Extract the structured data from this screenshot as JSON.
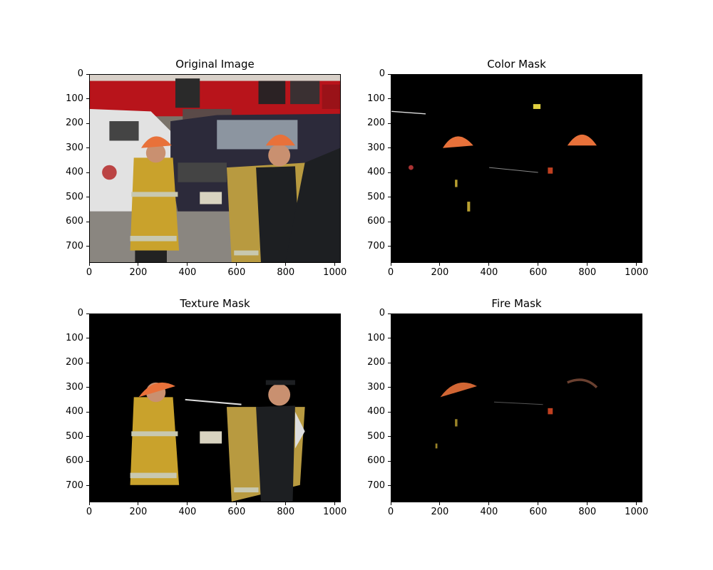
{
  "colors": {
    "truck_red": "#b8141b",
    "helmet_orange": "#e8713a",
    "jacket_yellow": "#c9a22c",
    "reflective": "#c8c8b0",
    "suv_navy": "#2c2a3a",
    "car_white": "#e2e2e2",
    "road": "#8a8680",
    "dark_uniform": "#1d1f22",
    "mask_black": "#000000"
  },
  "chart_data": [
    {
      "type": "image",
      "title": "Original Image",
      "xlim": [
        0,
        1024
      ],
      "ylim": [
        768,
        0
      ],
      "xticks": [
        0,
        200,
        400,
        600,
        800,
        1000
      ],
      "yticks": [
        0,
        100,
        200,
        300,
        400,
        500,
        600,
        700
      ],
      "content": "original"
    },
    {
      "type": "image",
      "title": "Color Mask",
      "xlim": [
        0,
        1024
      ],
      "ylim": [
        768,
        0
      ],
      "xticks": [
        0,
        200,
        400,
        600,
        800,
        1000
      ],
      "yticks": [
        0,
        100,
        200,
        300,
        400,
        500,
        600,
        700
      ],
      "content": "color"
    },
    {
      "type": "image",
      "title": "Texture Mask",
      "xlim": [
        0,
        1024
      ],
      "ylim": [
        768,
        0
      ],
      "xticks": [
        0,
        200,
        400,
        600,
        800,
        1000
      ],
      "yticks": [
        0,
        100,
        200,
        300,
        400,
        500,
        600,
        700
      ],
      "content": "texture"
    },
    {
      "type": "image",
      "title": "Fire Mask",
      "xlim": [
        0,
        1024
      ],
      "ylim": [
        768,
        0
      ],
      "xticks": [
        0,
        200,
        400,
        600,
        800,
        1000
      ],
      "yticks": [
        0,
        100,
        200,
        300,
        400,
        500,
        600,
        700
      ],
      "content": "fire"
    }
  ]
}
